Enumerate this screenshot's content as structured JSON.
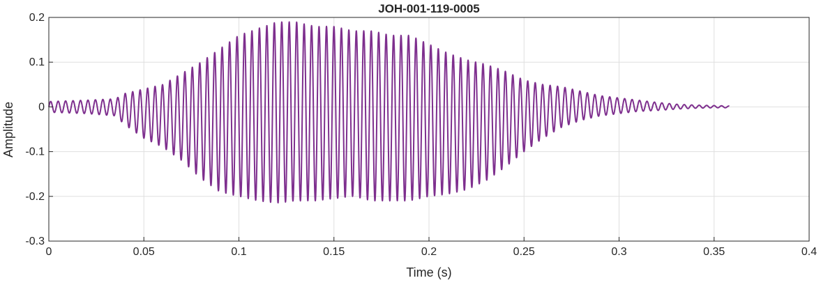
{
  "chart_data": {
    "type": "line",
    "title": "JOH-001-119-0005",
    "xlabel": "Time (s)",
    "ylabel": "Amplitude",
    "xlim": [
      0,
      0.4
    ],
    "ylim": [
      -0.3,
      0.2
    ],
    "grid": true,
    "xticks": [
      0,
      0.05,
      0.1,
      0.15,
      0.2,
      0.25,
      0.3,
      0.35,
      0.4
    ],
    "xtick_labels": [
      "0",
      "0.05",
      "0.1",
      "0.15",
      "0.2",
      "0.25",
      "0.3",
      "0.35",
      "0.4"
    ],
    "yticks": [
      -0.3,
      -0.2,
      -0.1,
      0,
      0.1,
      0.2
    ],
    "ytick_labels": [
      "-0.3",
      "-0.2",
      "-0.1",
      "0",
      "0.1",
      "0.2"
    ],
    "series": [
      {
        "color": "#7E2F8E",
        "duration_s": 0.358,
        "oscillation_freq_hz": 255,
        "envelope": {
          "t": [
            0,
            0.02,
            0.035,
            0.04,
            0.05,
            0.06,
            0.07,
            0.08,
            0.09,
            0.1,
            0.11,
            0.12,
            0.13,
            0.14,
            0.15,
            0.16,
            0.17,
            0.18,
            0.19,
            0.2,
            0.21,
            0.22,
            0.23,
            0.24,
            0.25,
            0.26,
            0.27,
            0.28,
            0.29,
            0.3,
            0.31,
            0.32,
            0.33,
            0.34,
            0.35,
            0.358
          ],
          "upper": [
            0.012,
            0.015,
            0.018,
            0.03,
            0.04,
            0.05,
            0.075,
            0.1,
            0.13,
            0.16,
            0.175,
            0.19,
            0.19,
            0.18,
            0.18,
            0.17,
            0.17,
            0.16,
            0.16,
            0.14,
            0.12,
            0.105,
            0.095,
            0.08,
            0.06,
            0.05,
            0.045,
            0.035,
            0.025,
            0.02,
            0.015,
            0.01,
            0.006,
            0.004,
            0.003,
            0.002
          ],
          "lower": [
            -0.012,
            -0.015,
            -0.02,
            -0.04,
            -0.07,
            -0.09,
            -0.12,
            -0.16,
            -0.19,
            -0.2,
            -0.21,
            -0.215,
            -0.21,
            -0.21,
            -0.205,
            -0.2,
            -0.21,
            -0.21,
            -0.21,
            -0.2,
            -0.195,
            -0.185,
            -0.165,
            -0.135,
            -0.1,
            -0.07,
            -0.045,
            -0.03,
            -0.02,
            -0.015,
            -0.01,
            -0.008,
            -0.005,
            -0.003,
            -0.002,
            -0.002
          ]
        }
      }
    ]
  }
}
